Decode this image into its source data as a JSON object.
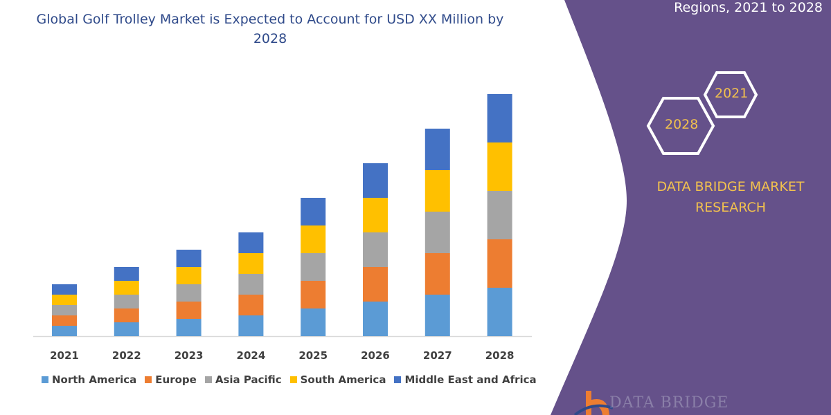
{
  "header": {
    "title": "Global Golf Trolley Market is Expected to Account for USD XX Million by 2028",
    "side_title": "Regions, 2021 to 2028"
  },
  "side_panel": {
    "hex_2021": "2021",
    "hex_2028": "2028",
    "brand": "DATA BRIDGE MARKET RESEARCH",
    "logo_text": "DATA BRIDGE",
    "panel_color": "#65518a",
    "accent_color": "#f2c14e"
  },
  "chart_data": {
    "type": "bar",
    "stacked": true,
    "title": "Global Golf Trolley Market is Expected to Account for USD XX Million by 2028",
    "categories": [
      "2021",
      "2022",
      "2023",
      "2024",
      "2025",
      "2026",
      "2027",
      "2028"
    ],
    "series": [
      {
        "name": "North America",
        "color": "#5b9bd5",
        "values": [
          15,
          20,
          25,
          30,
          40,
          50,
          60,
          70
        ]
      },
      {
        "name": "Europe",
        "color": "#ed7d31",
        "values": [
          15,
          20,
          25,
          30,
          40,
          50,
          60,
          70
        ]
      },
      {
        "name": "Asia Pacific",
        "color": "#a5a5a5",
        "values": [
          15,
          20,
          25,
          30,
          40,
          50,
          60,
          70
        ]
      },
      {
        "name": "South America",
        "color": "#ffc000",
        "values": [
          15,
          20,
          25,
          30,
          40,
          50,
          60,
          70
        ]
      },
      {
        "name": "Middle East and Africa",
        "color": "#4472c4",
        "values": [
          15,
          20,
          25,
          30,
          40,
          50,
          60,
          70
        ]
      }
    ],
    "xlabel": "",
    "ylabel": "",
    "y_axis_shown": false,
    "grid": false,
    "legend": "bottom"
  }
}
